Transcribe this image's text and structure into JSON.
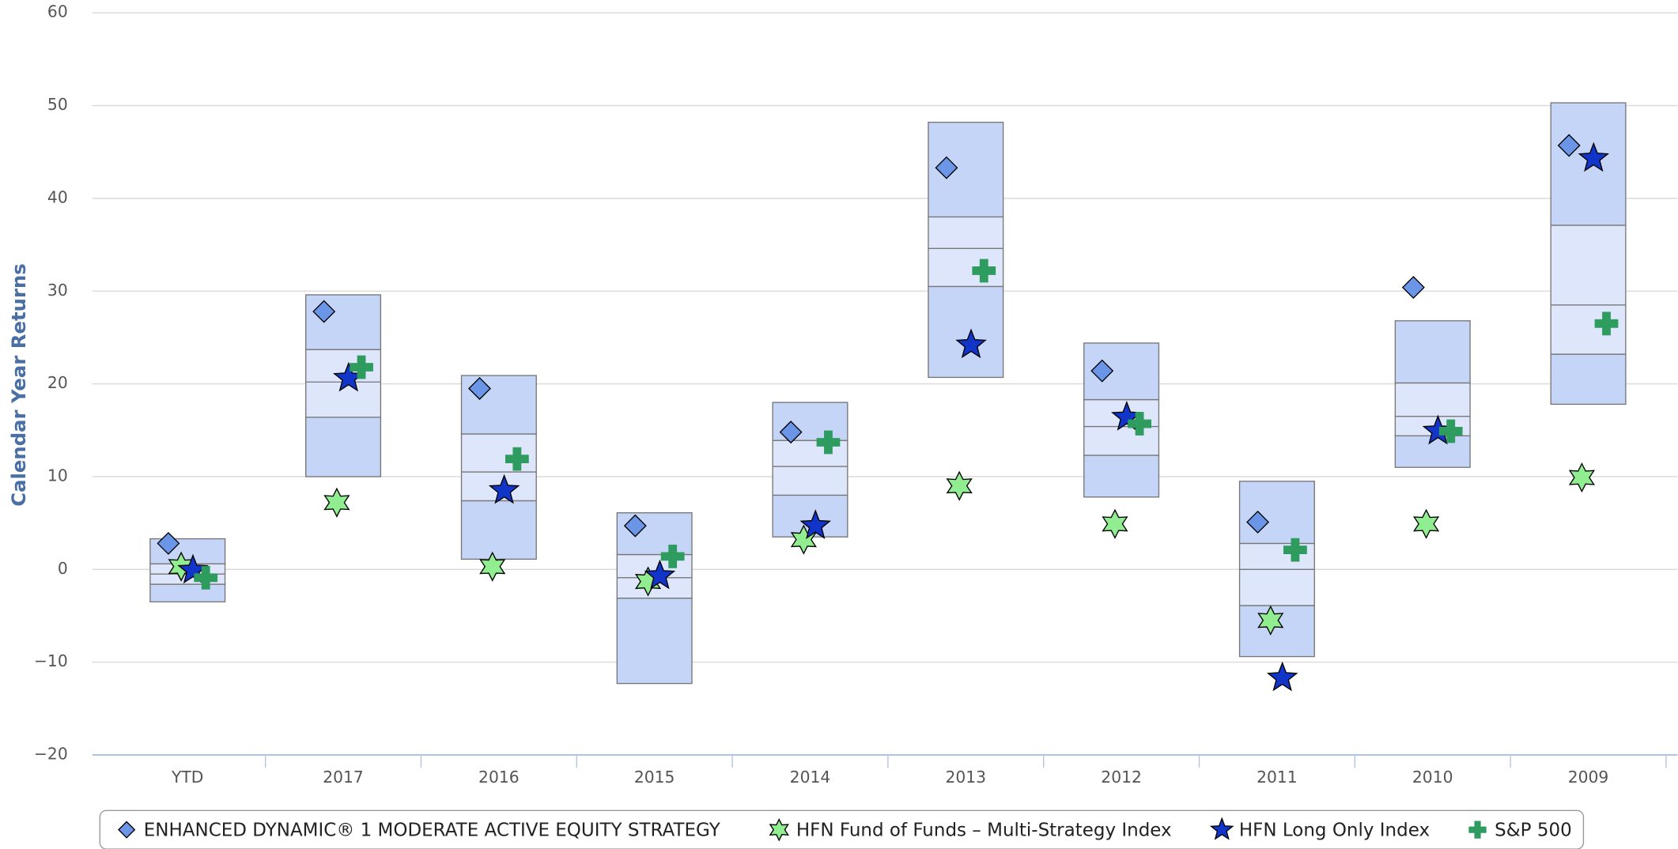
{
  "chart_data": {
    "type": "boxscatter",
    "y_label": "Calendar Year Returns",
    "categories": [
      "YTD",
      "2017",
      "2016",
      "2015",
      "2014",
      "2013",
      "2012",
      "2011",
      "2010",
      "2009"
    ],
    "ylim": [
      -20,
      60
    ],
    "yticks": [
      {
        "value": -20,
        "label": "−20"
      },
      {
        "value": -10,
        "label": "−10"
      },
      0,
      10,
      20,
      30,
      40,
      50,
      60
    ],
    "grid": true,
    "ranges": [
      [
        -3.5,
        -1.6,
        -0.5,
        0.6,
        3.3
      ],
      [
        10.0,
        16.4,
        20.2,
        23.7,
        29.6
      ],
      [
        1.1,
        7.4,
        10.5,
        14.6,
        20.9
      ],
      [
        -12.3,
        -3.1,
        -0.9,
        1.6,
        6.1
      ],
      [
        3.5,
        8.0,
        11.1,
        13.9,
        18.0
      ],
      [
        20.7,
        30.5,
        34.6,
        38.0,
        48.2
      ],
      [
        7.8,
        12.3,
        15.4,
        18.3,
        24.4
      ],
      [
        -9.4,
        -3.9,
        0,
        2.8,
        9.5
      ],
      [
        11.0,
        14.4,
        16.5,
        20.1,
        26.8
      ],
      [
        17.8,
        23.2,
        28.5,
        37.1,
        50.3
      ]
    ],
    "series": [
      {
        "name": "ENHANCED DYNAMIC® 1 MODERATE ACTIVE EQUITY STRATEGY",
        "color": "#6b95e6",
        "marker": "diamond",
        "values": [
          2.8,
          27.8,
          19.5,
          4.7,
          14.8,
          43.3,
          21.4,
          5.1,
          30.4,
          45.7
        ]
      },
      {
        "name": "HFN Fund of Funds – Multi-Strategy Index",
        "color": "#90ee90",
        "marker": "star6",
        "values": [
          0.3,
          7.2,
          0.3,
          -1.3,
          3.2,
          9.0,
          4.9,
          -5.5,
          4.9,
          9.9
        ]
      },
      {
        "name": "HFN Long Only Index",
        "color": "#1035c8",
        "marker": "star5",
        "values": [
          -0.1,
          20.6,
          8.5,
          -0.7,
          4.7,
          24.2,
          16.4,
          -11.7,
          14.9,
          44.3
        ]
      },
      {
        "name": "S&P 500",
        "color": "#2e9b5f",
        "marker": "plus",
        "values": [
          -0.9,
          21.8,
          11.9,
          1.4,
          13.7,
          32.2,
          15.7,
          2.1,
          14.9,
          26.5
        ]
      }
    ]
  }
}
